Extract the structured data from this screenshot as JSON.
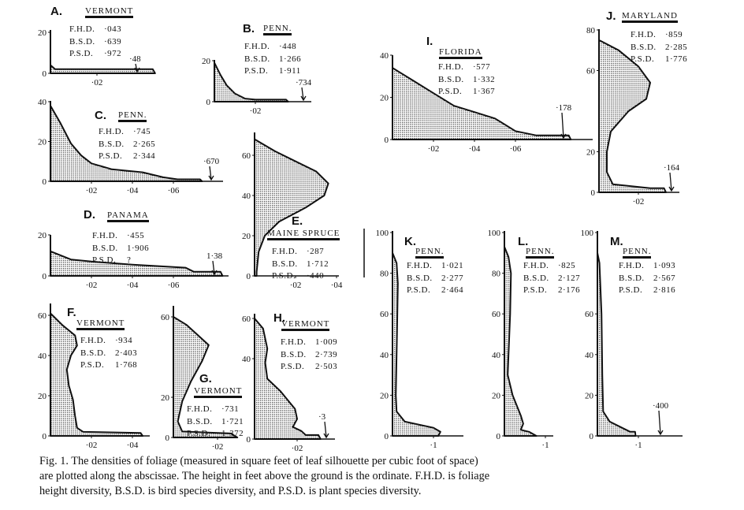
{
  "caption": {
    "lines": [
      "Fig. 1. The densities of foliage (measured in square feet of leaf silhouette per cubic foot of space)",
      "are plotted along the abscissae. The height in feet above the ground is the ordinate. F.H.D. is foliage",
      "height diversity, B.S.D. is bird species diversity, and P.S.D. is plant species diversity."
    ]
  },
  "stat_keys": {
    "fhd": "F.H.D.",
    "bsd": "B.S.D.",
    "psd": "P.S.D."
  },
  "chart_data": [
    {
      "id": "A",
      "type": "area",
      "letter": "A.",
      "site": "Vermont",
      "fhd": "·043",
      "bsd": "·639",
      "psd": "·972",
      "arrow_label": "·48",
      "xticks": [
        {
          "v": 0.02,
          "t": "·02"
        }
      ],
      "yticks": [
        {
          "v": 0,
          "t": "0"
        },
        {
          "v": 20,
          "t": "20"
        }
      ],
      "profile": [
        [
          0,
          4
        ],
        [
          0.002,
          2
        ],
        [
          0.044,
          2
        ],
        [
          0.045,
          0
        ]
      ]
    },
    {
      "id": "B",
      "type": "area",
      "letter": "B.",
      "site": "Penn.",
      "fhd": "·448",
      "bsd": "1·266",
      "psd": "1·911",
      "arrow_label": "·734",
      "xticks": [
        {
          "v": 0.02,
          "t": "·02"
        }
      ],
      "yticks": [
        {
          "v": 0,
          "t": "0"
        },
        {
          "v": 20,
          "t": "20"
        }
      ],
      "profile": [
        [
          0,
          19
        ],
        [
          0.003,
          13
        ],
        [
          0.006,
          8
        ],
        [
          0.01,
          4
        ],
        [
          0.015,
          1.5
        ],
        [
          0.02,
          1
        ],
        [
          0.035,
          1
        ],
        [
          0.036,
          0
        ]
      ]
    },
    {
      "id": "C",
      "type": "area",
      "letter": "C.",
      "site": "Penn.",
      "fhd": "·745",
      "bsd": "2·265",
      "psd": "2·344",
      "arrow_label": "·670",
      "xticks": [
        {
          "v": 0.02,
          "t": "·02"
        },
        {
          "v": 0.04,
          "t": "·04"
        },
        {
          "v": 0.06,
          "t": "·06"
        }
      ],
      "yticks": [
        {
          "v": 0,
          "t": "0"
        },
        {
          "v": 20,
          "t": "20"
        },
        {
          "v": 40,
          "t": "40"
        }
      ],
      "profile": [
        [
          0,
          38
        ],
        [
          0.005,
          29
        ],
        [
          0.01,
          19
        ],
        [
          0.015,
          13
        ],
        [
          0.02,
          9
        ],
        [
          0.03,
          6
        ],
        [
          0.045,
          4.5
        ],
        [
          0.055,
          2
        ],
        [
          0.062,
          1
        ],
        [
          0.073,
          1
        ],
        [
          0.074,
          0
        ]
      ]
    },
    {
      "id": "D",
      "type": "area",
      "letter": "D.",
      "site": "Panama",
      "fhd": "·455",
      "bsd": "1·906",
      "psd": "?",
      "arrow_label": "1·38",
      "xticks": [
        {
          "v": 0.02,
          "t": "·02"
        },
        {
          "v": 0.04,
          "t": "·04"
        },
        {
          "v": 0.06,
          "t": "·06"
        }
      ],
      "yticks": [
        {
          "v": 0,
          "t": "0"
        },
        {
          "v": 20,
          "t": "20"
        }
      ],
      "profile": [
        [
          0,
          12
        ],
        [
          0.01,
          8
        ],
        [
          0.02,
          7
        ],
        [
          0.04,
          5.5
        ],
        [
          0.066,
          4
        ],
        [
          0.07,
          2
        ],
        [
          0.083,
          2
        ],
        [
          0.084,
          0
        ]
      ]
    },
    {
      "id": "E",
      "type": "area",
      "letter": "E.",
      "site": "Maine Spruce",
      "fhd": "·287",
      "bsd": "1·712",
      "psd": "·440",
      "arrow_label": "",
      "xticks": [
        {
          "v": 0.02,
          "t": "·02"
        },
        {
          "v": 0.04,
          "t": "·04"
        }
      ],
      "yticks": [
        {
          "v": 0,
          "t": "0"
        },
        {
          "v": 20,
          "t": "20"
        },
        {
          "v": 40,
          "t": "40"
        },
        {
          "v": 60,
          "t": "60"
        }
      ],
      "profile": [
        [
          0,
          68
        ],
        [
          0.01,
          62
        ],
        [
          0.02,
          57
        ],
        [
          0.03,
          52
        ],
        [
          0.036,
          46
        ],
        [
          0.034,
          40
        ],
        [
          0.025,
          34
        ],
        [
          0.012,
          27
        ],
        [
          0.005,
          20
        ],
        [
          0.002,
          12
        ],
        [
          0.001,
          2
        ],
        [
          0.001,
          0
        ]
      ]
    },
    {
      "id": "F",
      "type": "area",
      "letter": "F.",
      "site": "Vermont",
      "fhd": "·934",
      "bsd": "2·403",
      "psd": "1·768",
      "arrow_label": "",
      "xticks": [
        {
          "v": 0.02,
          "t": "·02"
        },
        {
          "v": 0.04,
          "t": "·04"
        }
      ],
      "yticks": [
        {
          "v": 0,
          "t": "0"
        },
        {
          "v": 20,
          "t": "20"
        },
        {
          "v": 40,
          "t": "40"
        },
        {
          "v": 60,
          "t": "60"
        }
      ],
      "profile": [
        [
          0,
          61
        ],
        [
          0.006,
          55
        ],
        [
          0.012,
          50
        ],
        [
          0.013,
          45
        ],
        [
          0.01,
          40
        ],
        [
          0.008,
          33
        ],
        [
          0.009,
          25
        ],
        [
          0.011,
          18
        ],
        [
          0.012,
          10
        ],
        [
          0.013,
          4
        ],
        [
          0.016,
          2
        ],
        [
          0.044,
          1.5
        ],
        [
          0.045,
          0
        ]
      ]
    },
    {
      "id": "G",
      "type": "area",
      "letter": "G.",
      "site": "Vermont",
      "fhd": "·731",
      "bsd": "1·721",
      "psd": "1·372",
      "arrow_label": "",
      "xticks": [
        {
          "v": 0.02,
          "t": "·02"
        }
      ],
      "yticks": [
        {
          "v": 0,
          "t": "0"
        },
        {
          "v": 20,
          "t": "20"
        },
        {
          "v": 60,
          "t": "60"
        }
      ],
      "profile": [
        [
          0,
          60
        ],
        [
          0.006,
          56
        ],
        [
          0.012,
          50
        ],
        [
          0.016,
          46
        ],
        [
          0.013,
          38
        ],
        [
          0.008,
          28
        ],
        [
          0.004,
          18
        ],
        [
          0.002,
          8
        ],
        [
          0.004,
          3
        ],
        [
          0.026,
          2
        ],
        [
          0.029,
          0
        ]
      ]
    },
    {
      "id": "H",
      "type": "area",
      "letter": "H.",
      "site": "Vermont",
      "fhd": "1·009",
      "bsd": "2·739",
      "psd": "2·503",
      "arrow_label": "·3",
      "xticks": [
        {
          "v": 0.02,
          "t": "·02"
        }
      ],
      "yticks": [
        {
          "v": 0,
          "t": "0"
        },
        {
          "v": 40,
          "t": "40"
        },
        {
          "v": 60,
          "t": "60"
        }
      ],
      "profile": [
        [
          0,
          60
        ],
        [
          0.004,
          55
        ],
        [
          0.006,
          45
        ],
        [
          0.005,
          38
        ],
        [
          0.006,
          30
        ],
        [
          0.012,
          24
        ],
        [
          0.019,
          15
        ],
        [
          0.02,
          10
        ],
        [
          0.018,
          6
        ],
        [
          0.022,
          4
        ],
        [
          0.024,
          2
        ],
        [
          0.03,
          2
        ],
        [
          0.031,
          0
        ]
      ]
    },
    {
      "id": "I",
      "type": "area",
      "letter": "I.",
      "site": "Florida",
      "fhd": "·577",
      "bsd": "1·332",
      "psd": "1·367",
      "arrow_label": "·178",
      "xticks": [
        {
          "v": 0.02,
          "t": "·02"
        },
        {
          "v": 0.04,
          "t": "·04"
        },
        {
          "v": 0.06,
          "t": "·06"
        }
      ],
      "yticks": [
        {
          "v": 0,
          "t": "0"
        },
        {
          "v": 20,
          "t": "20"
        },
        {
          "v": 40,
          "t": "40"
        }
      ],
      "profile": [
        [
          0,
          34
        ],
        [
          0.01,
          28
        ],
        [
          0.02,
          22
        ],
        [
          0.03,
          16
        ],
        [
          0.04,
          13
        ],
        [
          0.05,
          10
        ],
        [
          0.06,
          4
        ],
        [
          0.07,
          2
        ],
        [
          0.086,
          2
        ],
        [
          0.087,
          0
        ]
      ]
    },
    {
      "id": "J",
      "type": "area",
      "letter": "J.",
      "site": "Maryland",
      "fhd": "·859",
      "bsd": "2·285",
      "psd": "1·776",
      "arrow_label": "·164",
      "xticks": [
        {
          "v": 0.02,
          "t": "·02"
        }
      ],
      "yticks": [
        {
          "v": 0,
          "t": "0"
        },
        {
          "v": 20,
          "t": "20"
        },
        {
          "v": 60,
          "t": "60"
        },
        {
          "v": 80,
          "t": "80"
        }
      ],
      "profile": [
        [
          0,
          75
        ],
        [
          0.01,
          70
        ],
        [
          0.02,
          62
        ],
        [
          0.026,
          54
        ],
        [
          0.024,
          46
        ],
        [
          0.015,
          40
        ],
        [
          0.006,
          30
        ],
        [
          0.004,
          20
        ],
        [
          0.004,
          10
        ],
        [
          0.007,
          4
        ],
        [
          0.026,
          2
        ],
        [
          0.033,
          2
        ],
        [
          0.034,
          0
        ]
      ]
    },
    {
      "id": "K",
      "type": "area",
      "letter": "K.",
      "site": "Penn.",
      "fhd": "1·021",
      "bsd": "2·277",
      "psd": "2·464",
      "arrow_label": "",
      "xticks": [
        {
          "v": 0.1,
          "t": "·1"
        }
      ],
      "yticks": [
        {
          "v": 0,
          "t": "0"
        },
        {
          "v": 20,
          "t": "20"
        },
        {
          "v": 40,
          "t": "40"
        },
        {
          "v": 60,
          "t": "60"
        },
        {
          "v": 80,
          "t": "80"
        },
        {
          "v": 100,
          "t": "100"
        }
      ],
      "profile": [
        [
          0,
          90
        ],
        [
          0.01,
          85
        ],
        [
          0.013,
          75
        ],
        [
          0.011,
          50
        ],
        [
          0.008,
          20
        ],
        [
          0.01,
          12
        ],
        [
          0.03,
          7
        ],
        [
          0.1,
          4
        ],
        [
          0.117,
          2
        ],
        [
          0.112,
          0
        ]
      ]
    },
    {
      "id": "L",
      "type": "area",
      "letter": "L.",
      "site": "Penn.",
      "fhd": "·825",
      "bsd": "2·127",
      "psd": "2·176",
      "arrow_label": "",
      "xticks": [
        {
          "v": 0.1,
          "t": "·1"
        }
      ],
      "yticks": [
        {
          "v": 0,
          "t": "0"
        },
        {
          "v": 20,
          "t": "20"
        },
        {
          "v": 40,
          "t": "40"
        },
        {
          "v": 60,
          "t": "60"
        },
        {
          "v": 80,
          "t": "80"
        },
        {
          "v": 100,
          "t": "100"
        }
      ],
      "profile": [
        [
          0,
          93
        ],
        [
          0.01,
          88
        ],
        [
          0.016,
          80
        ],
        [
          0.014,
          60
        ],
        [
          0.01,
          40
        ],
        [
          0.008,
          30
        ],
        [
          0.02,
          20
        ],
        [
          0.04,
          10
        ],
        [
          0.046,
          6
        ],
        [
          0.04,
          3
        ],
        [
          0.06,
          2
        ],
        [
          0.078,
          0
        ]
      ]
    },
    {
      "id": "M",
      "type": "area",
      "letter": "M.",
      "site": "Penn.",
      "fhd": "1·093",
      "bsd": "2·567",
      "psd": "2·816",
      "arrow_label": "·400",
      "xticks": [
        {
          "v": 0.1,
          "t": "·1"
        }
      ],
      "yticks": [
        {
          "v": 0,
          "t": "0"
        },
        {
          "v": 20,
          "t": "20"
        },
        {
          "v": 40,
          "t": "40"
        },
        {
          "v": 60,
          "t": "60"
        },
        {
          "v": 100,
          "t": "100"
        }
      ],
      "profile": [
        [
          0,
          90
        ],
        [
          0.005,
          85
        ],
        [
          0.01,
          60
        ],
        [
          0.012,
          30
        ],
        [
          0.014,
          12
        ],
        [
          0.03,
          7
        ],
        [
          0.06,
          4
        ],
        [
          0.08,
          2
        ],
        [
          0.092,
          2
        ],
        [
          0.093,
          0
        ]
      ]
    }
  ]
}
